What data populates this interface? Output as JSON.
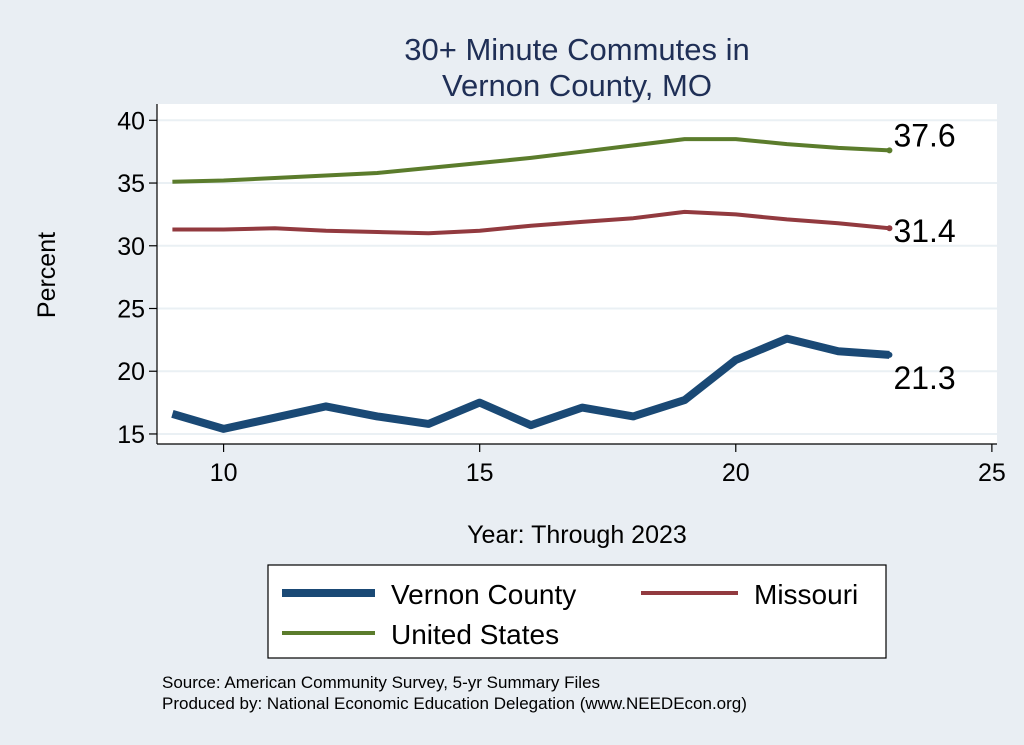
{
  "chart_data": {
    "type": "line",
    "title_lines": [
      "30+ Minute Commutes in",
      "Vernon County, MO"
    ],
    "xlabel": "Year: Through 2023",
    "ylabel": "Percent",
    "xlim": [
      8.7,
      25.1
    ],
    "ylim": [
      14.2,
      41.3
    ],
    "xticks": [
      10,
      15,
      20,
      25
    ],
    "yticks": [
      15,
      20,
      25,
      30,
      35,
      40
    ],
    "grid": true,
    "series": [
      {
        "name": "Vernon County",
        "color": "#1a4975",
        "x": [
          9,
          10,
          11,
          12,
          13,
          14,
          15,
          16,
          17,
          18,
          19,
          20,
          21,
          22,
          23
        ],
        "values": [
          16.6,
          15.4,
          16.3,
          17.2,
          16.4,
          15.8,
          17.5,
          15.7,
          17.1,
          16.4,
          17.7,
          20.9,
          22.6,
          21.6,
          21.3
        ],
        "end_label": "21.3"
      },
      {
        "name": "Missouri",
        "color": "#923a3f",
        "x": [
          9,
          10,
          11,
          12,
          13,
          14,
          15,
          16,
          17,
          18,
          19,
          20,
          21,
          22,
          23
        ],
        "values": [
          31.3,
          31.3,
          31.4,
          31.2,
          31.1,
          31.0,
          31.2,
          31.6,
          31.9,
          32.2,
          32.7,
          32.5,
          32.1,
          31.8,
          31.4
        ],
        "end_label": "31.4"
      },
      {
        "name": "United States",
        "color": "#5b7c2c",
        "x": [
          9,
          10,
          11,
          12,
          13,
          14,
          15,
          16,
          17,
          18,
          19,
          20,
          21,
          22,
          23
        ],
        "values": [
          35.1,
          35.2,
          35.4,
          35.6,
          35.8,
          36.2,
          36.6,
          37.0,
          37.5,
          38.0,
          38.5,
          38.5,
          38.1,
          37.8,
          37.6
        ],
        "end_label": "37.6"
      }
    ],
    "legend": [
      "Vernon County",
      "Missouri",
      "United States"
    ],
    "source_lines": [
      "Source: American Community Survey, 5-yr Summary Files",
      "Produced by: National Economic Education Delegation (www.NEEDEcon.org)"
    ]
  }
}
